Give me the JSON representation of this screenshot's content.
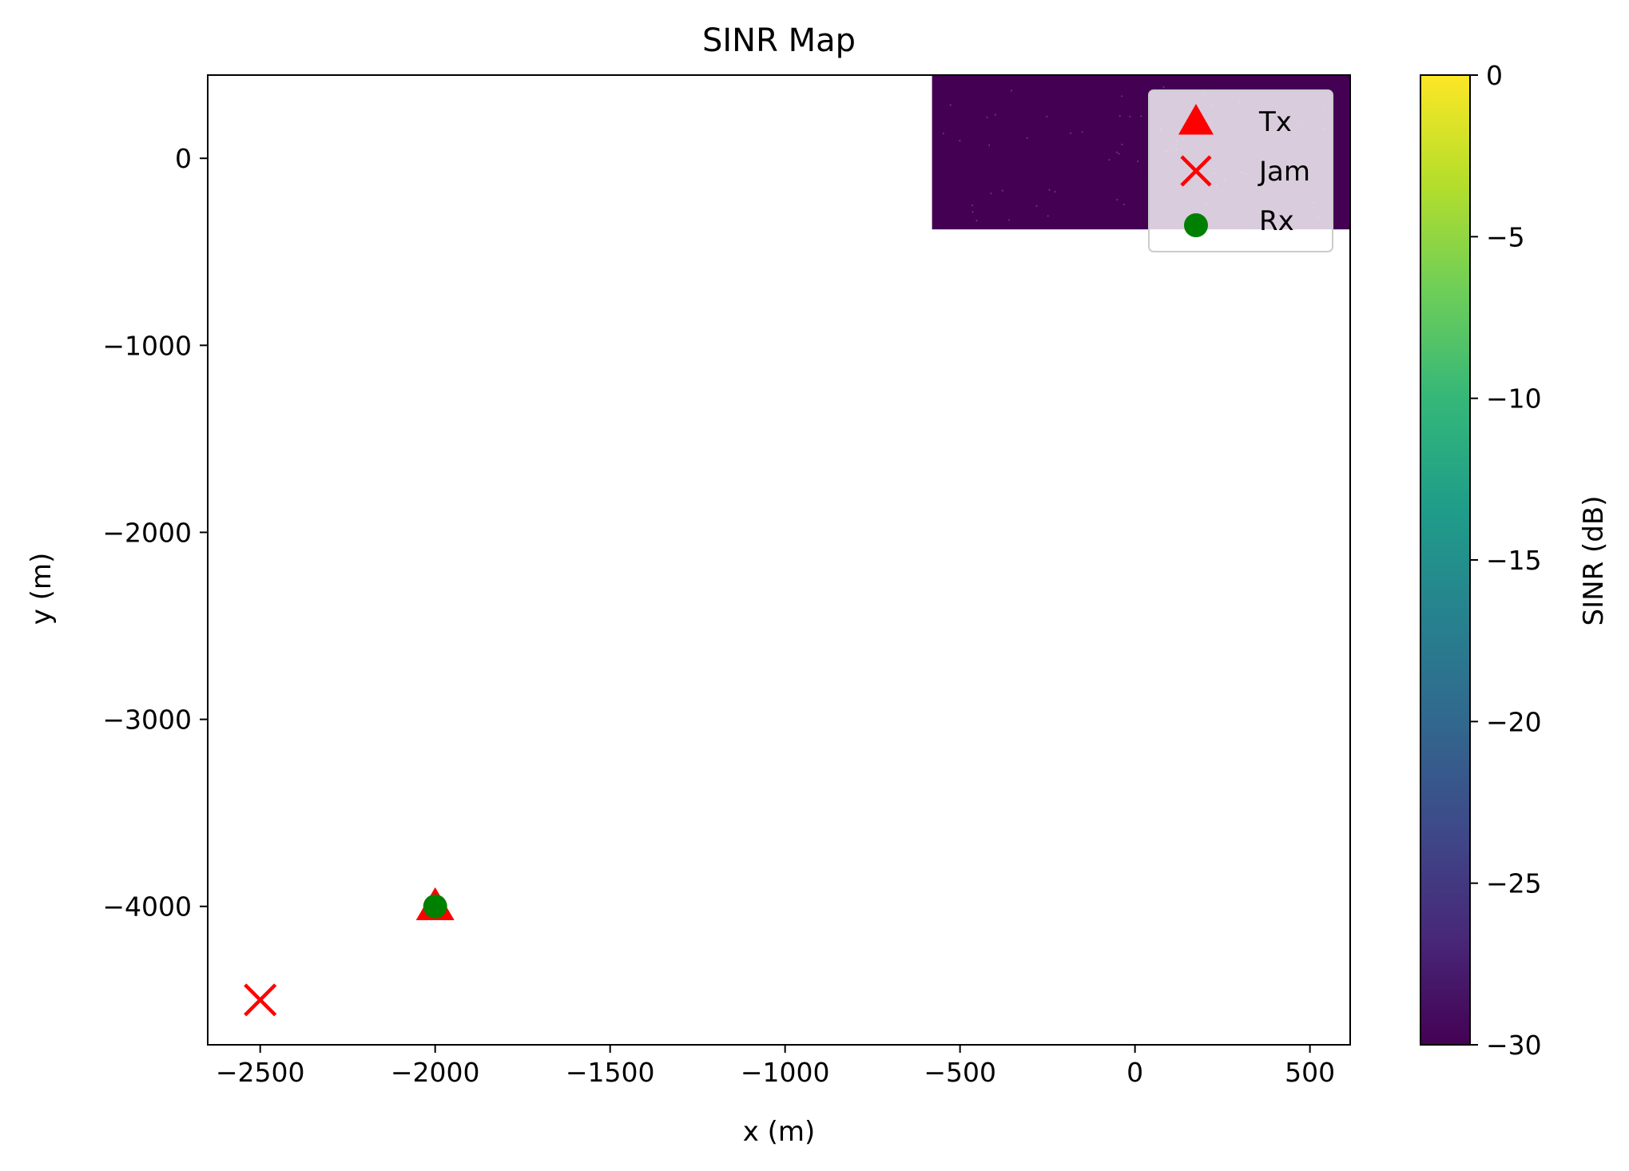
{
  "chart_data": {
    "type": "heatmap",
    "title": "SINR Map",
    "xlabel": "x (m)",
    "ylabel": "y (m)",
    "xlim": [
      -2650,
      615
    ],
    "ylim": [
      -4740,
      445
    ],
    "xticks": [
      -2500,
      -2000,
      -1500,
      -1000,
      -500,
      0,
      500
    ],
    "xtick_labels": [
      "−2500",
      "−2000",
      "−1500",
      "−1000",
      "−500",
      "0",
      "500"
    ],
    "yticks": [
      0,
      -1000,
      -2000,
      -3000,
      -4000
    ],
    "ytick_labels": [
      "0",
      "−1000",
      "−2000",
      "−3000",
      "−4000"
    ],
    "grid": false,
    "heatmap_region": {
      "x": [
        -580,
        615
      ],
      "y": [
        -380,
        445
      ],
      "value_db": -30
    },
    "colorbar": {
      "label": "SINR (dB)",
      "range": [
        -30,
        0
      ],
      "colormap": "viridis",
      "ticks": [
        0,
        -5,
        -10,
        -15,
        -20,
        -25,
        -30
      ],
      "tick_labels": [
        "0",
        "−5",
        "−10",
        "−15",
        "−20",
        "−25",
        "−30"
      ]
    },
    "markers": [
      {
        "name": "Tx",
        "x": -2000,
        "y": -4000,
        "shape": "triangle",
        "color": "#ff0000"
      },
      {
        "name": "Jam",
        "x": -2500,
        "y": -4500,
        "shape": "x",
        "color": "#ff0000"
      },
      {
        "name": "Rx",
        "x": -2000,
        "y": -4000,
        "shape": "circle",
        "color": "#008000"
      }
    ],
    "legend": {
      "position": "top-right",
      "entries": [
        "Tx",
        "Jam",
        "Rx"
      ]
    }
  }
}
